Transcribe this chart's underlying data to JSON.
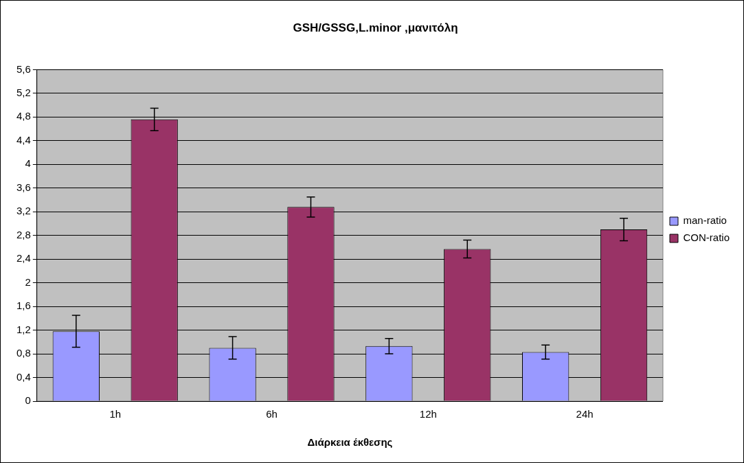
{
  "chart_data": {
    "type": "bar",
    "title": "GSH/GSSG,L.minor ,μανιτόλη",
    "xlabel": "Διάρκεια έκθεσης",
    "categories": [
      "1h",
      "6h",
      "12h",
      "24h"
    ],
    "series": [
      {
        "name": "man-ratio",
        "color": "#9999ff",
        "values": [
          1.18,
          0.9,
          0.93,
          0.83
        ],
        "errors": [
          0.27,
          0.19,
          0.13,
          0.12
        ]
      },
      {
        "name": "CON-ratio",
        "color": "#993366",
        "values": [
          4.76,
          3.28,
          2.57,
          2.9
        ],
        "errors": [
          0.19,
          0.17,
          0.15,
          0.19
        ]
      }
    ],
    "ylim": [
      0,
      5.6
    ],
    "yticks": [
      0,
      {
        "value": 0.4,
        "label": "0,4"
      },
      {
        "value": 0.8,
        "label": "0,8"
      },
      {
        "value": 1.2,
        "label": "1,2"
      },
      {
        "value": 1.6,
        "label": "1,6"
      },
      2,
      {
        "value": 2.4,
        "label": "2,4"
      },
      {
        "value": 2.8,
        "label": "2,8"
      },
      {
        "value": 3.2,
        "label": "3,2"
      },
      {
        "value": 3.6,
        "label": "3,6"
      },
      4,
      {
        "value": 4.4,
        "label": "4,4"
      },
      {
        "value": 4.8,
        "label": "4,8"
      },
      {
        "value": 5.2,
        "label": "5,2"
      },
      {
        "value": 5.6,
        "label": "5,6"
      }
    ],
    "grid": "y",
    "legend": "right"
  }
}
